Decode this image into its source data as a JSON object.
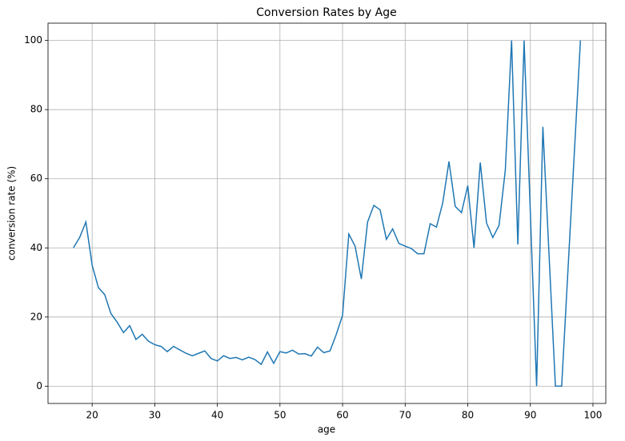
{
  "chart_data": {
    "type": "line",
    "title": "Conversion Rates by Age",
    "xlabel": "age",
    "ylabel": "conversion rate (%)",
    "x": [
      17,
      18,
      19,
      20,
      21,
      22,
      23,
      24,
      25,
      26,
      27,
      28,
      29,
      30,
      31,
      32,
      33,
      34,
      35,
      36,
      37,
      38,
      39,
      40,
      41,
      42,
      43,
      44,
      45,
      46,
      47,
      48,
      49,
      50,
      51,
      52,
      53,
      54,
      55,
      56,
      57,
      58,
      59,
      60,
      61,
      62,
      63,
      64,
      65,
      66,
      67,
      68,
      69,
      70,
      71,
      72,
      73,
      74,
      75,
      76,
      77,
      78,
      79,
      80,
      81,
      82,
      83,
      84,
      85,
      86,
      87,
      88,
      89,
      91,
      92,
      94,
      95,
      98
    ],
    "series": [
      {
        "name": "conversion rate",
        "color": "#1f77b4",
        "values": [
          40,
          43,
          47.5,
          35,
          28.5,
          26.5,
          21,
          18.5,
          15.5,
          17.5,
          13.5,
          15,
          13,
          12,
          11.5,
          10,
          11.5,
          10.5,
          9.5,
          8.8,
          9.5,
          10.2,
          8,
          7.3,
          8.8,
          8,
          8.3,
          7.6,
          8.4,
          7.7,
          6.3,
          9.9,
          6.6,
          10,
          9.6,
          10.4,
          9.3,
          9.4,
          8.7,
          11.3,
          9.7,
          10.2,
          15,
          20.5,
          44,
          40.5,
          31,
          47.5,
          52.3,
          51,
          42.5,
          45.5,
          41.3,
          40.5,
          39.8,
          38.3,
          38.3,
          47,
          46,
          53,
          65,
          52,
          50.2,
          58,
          40,
          64.7,
          47.2,
          43,
          46.5,
          62.5,
          100,
          41,
          100,
          0,
          75,
          0,
          0,
          100
        ]
      }
    ],
    "xlim": [
      12.95,
      102.05
    ],
    "ylim": [
      -5,
      105
    ],
    "xticks": [
      20,
      30,
      40,
      50,
      60,
      70,
      80,
      90,
      100
    ],
    "yticks": [
      0,
      20,
      40,
      60,
      80,
      100
    ],
    "grid": true
  }
}
